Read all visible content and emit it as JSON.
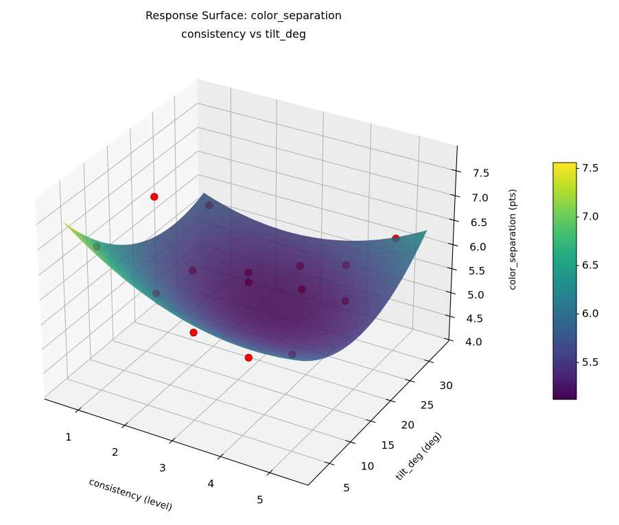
{
  "chart_data": {
    "type": "surface",
    "title_line1": "Response Surface: color_separation",
    "title_line2": "consistency vs tilt_deg",
    "xlabel": "consistency (level)",
    "ylabel": "tilt_deg (deg)",
    "zlabel": "color_separation (pts)",
    "view": {
      "elevation_deg": 30,
      "azimuth_deg": -60
    },
    "xlim": [
      0.26,
      5.77
    ],
    "ylim": [
      0.03,
      35.34
    ],
    "zlim": [
      3.97,
      8.0
    ],
    "x_ticks": [
      "1",
      "2",
      "3",
      "4",
      "5"
    ],
    "x_tick_values": [
      1,
      2,
      3,
      4,
      5
    ],
    "y_ticks": [
      "5",
      "10",
      "15",
      "20",
      "25",
      "30"
    ],
    "y_tick_values": [
      5,
      10,
      15,
      20,
      25,
      30
    ],
    "z_ticks": [
      "4.0",
      "4.5",
      "5.0",
      "5.5",
      "6.0",
      "6.5",
      "7.0",
      "7.5"
    ],
    "z_tick_values": [
      4.0,
      4.5,
      5.0,
      5.5,
      6.0,
      6.5,
      7.0,
      7.5
    ],
    "grid": true,
    "colormap": "viridis",
    "surface": {
      "x_range": [
        0.6,
        5.4
      ],
      "y_range": [
        2,
        33
      ],
      "model": {
        "b0": 8.3257,
        "bx": -0.87904,
        "by": -0.17139,
        "bxx": 0.09549,
        "byy": 0.003163,
        "bxy": 0.012433
      },
      "alpha": 0.85
    },
    "points": [
      {
        "x": 1,
        "y": 17.5,
        "z": 6.99
      },
      {
        "x": 1,
        "y": 30,
        "z": 5.92
      },
      {
        "x": 1,
        "y": 5,
        "z": 6.9
      },
      {
        "x": 5,
        "y": 30,
        "z": 6.31
      },
      {
        "x": 3,
        "y": 5,
        "z": 6.99
      },
      {
        "x": 3,
        "y": 17.5,
        "z": 6.0
      },
      {
        "x": 3,
        "y": 17.5,
        "z": 5.8
      },
      {
        "x": 3,
        "y": 30,
        "z": 5.19
      },
      {
        "x": 4,
        "y": 18.8,
        "z": 5.84
      },
      {
        "x": 5,
        "y": 17.5,
        "z": 6.71
      },
      {
        "x": 5,
        "y": 17.5,
        "z": 5.99
      },
      {
        "x": 3,
        "y": 5,
        "z": 5.76
      },
      {
        "x": 5,
        "y": 5,
        "z": 5.92
      },
      {
        "x": 3,
        "y": 17.5,
        "z": 4.23
      },
      {
        "x": 1,
        "y": 17.5,
        "z": 5.0
      }
    ],
    "point_color": "#ff0000",
    "colorbar": {
      "range": [
        5.12,
        7.56
      ],
      "ticks": [
        "5.5",
        "6.0",
        "6.5",
        "7.0",
        "7.5"
      ],
      "tick_values": [
        5.5,
        6.0,
        6.5,
        7.0,
        7.5
      ]
    }
  }
}
